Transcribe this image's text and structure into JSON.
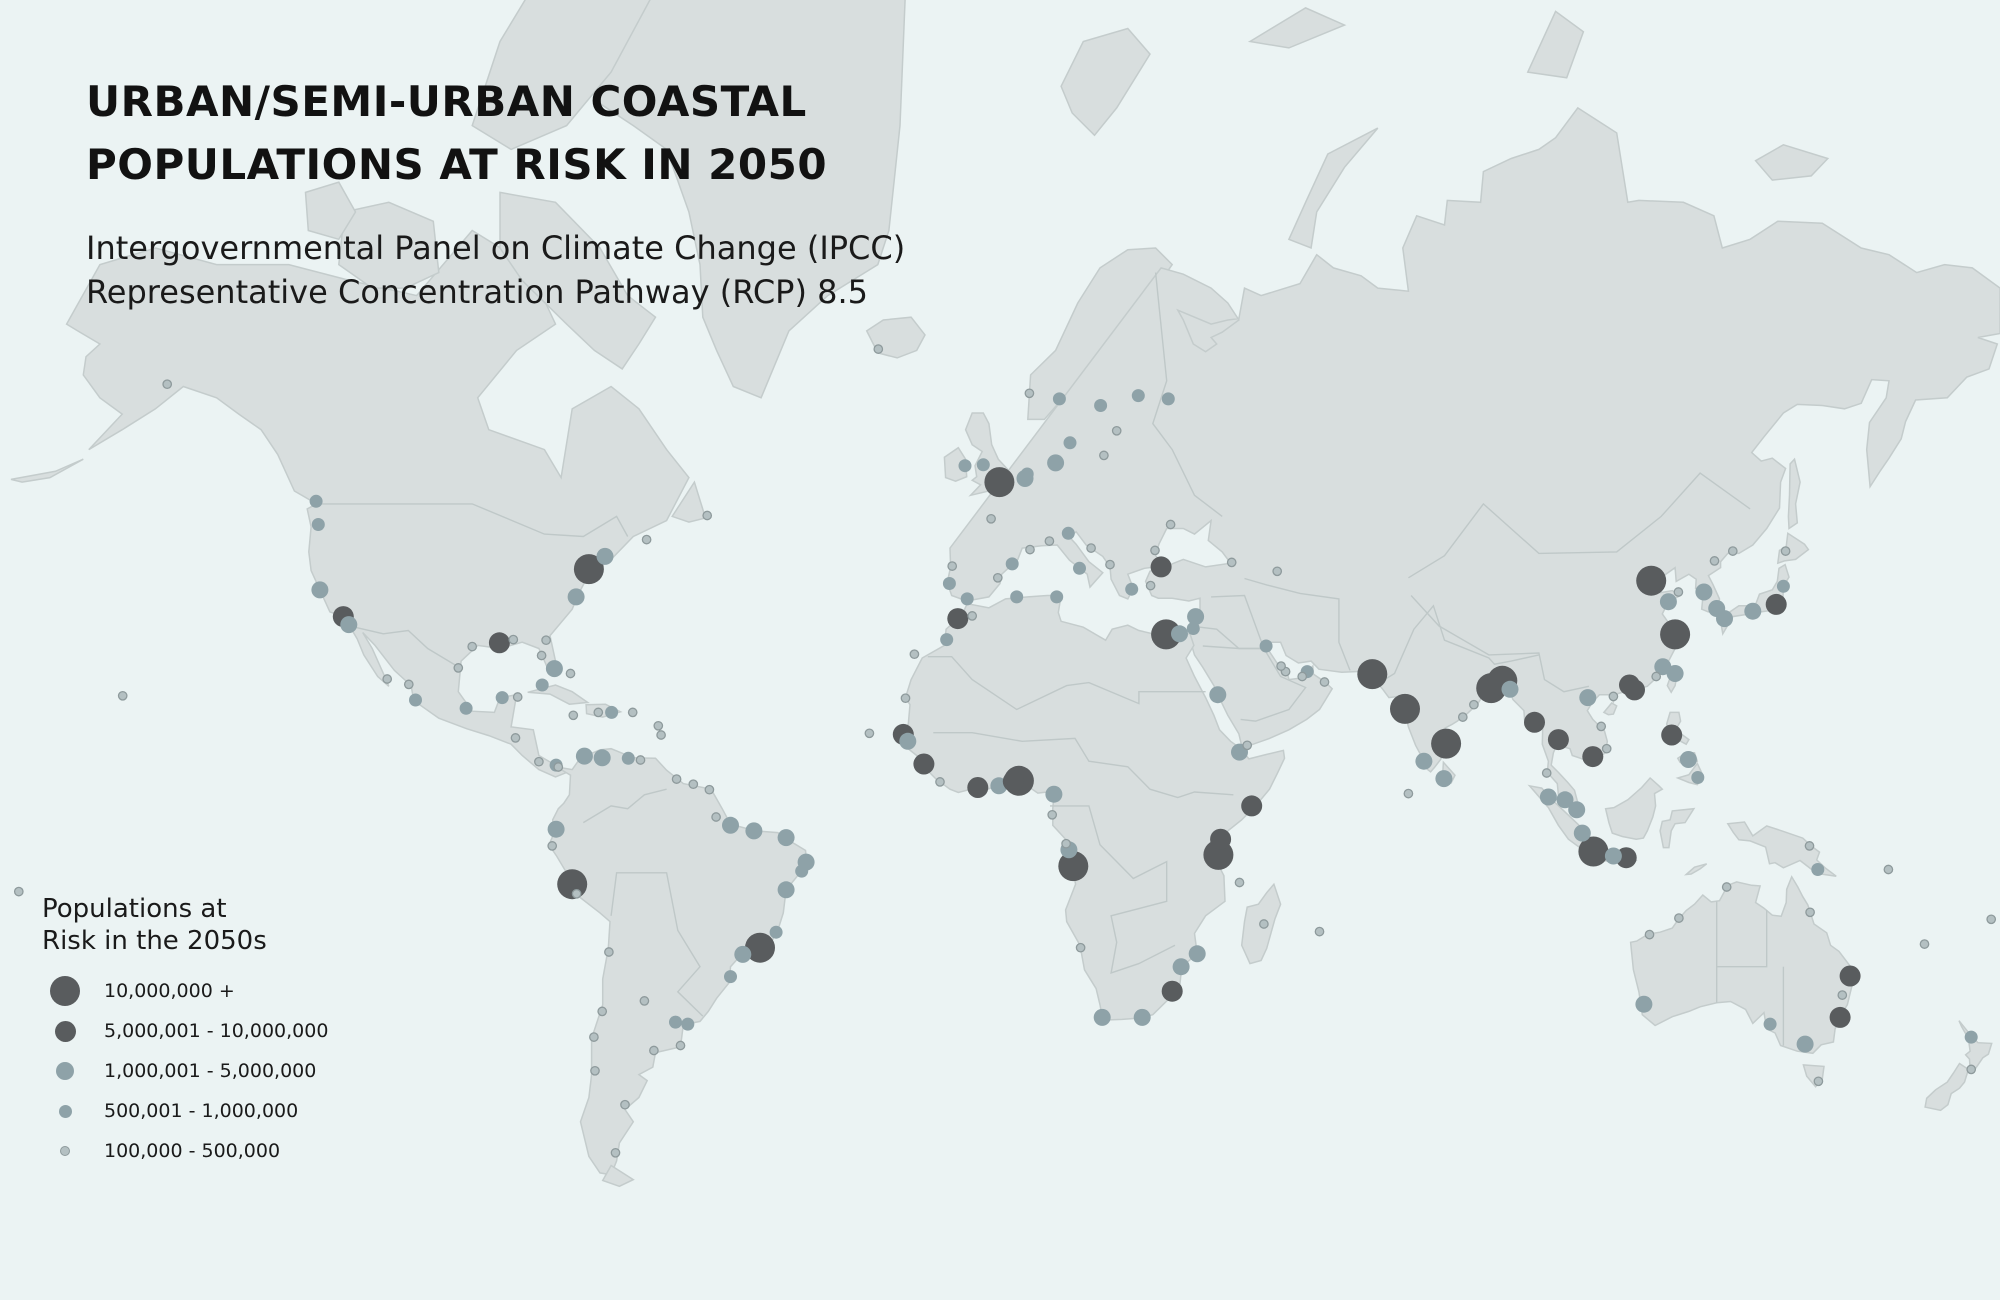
{
  "title": {
    "line1": "URBAN/SEMI-URBAN COASTAL",
    "line2": "POPULATIONS AT RISK IN 2050"
  },
  "subtitle": {
    "line1": "Intergovernmental Panel on Climate Change (IPCC)",
    "line2": "Representative Concentration Pathway (RCP) 8.5"
  },
  "legend": {
    "title_line1": "Populations at",
    "title_line2": "Risk in the 2050s",
    "classes": [
      {
        "label": "10,000,000 +",
        "color": "#595c5e"
      },
      {
        "label": "5,000,001 - 10,000,000",
        "color": "#595c5e"
      },
      {
        "label": "1,000,001 - 5,000,000",
        "color": "#8ea2a8"
      },
      {
        "label": "500,001 - 1,000,000",
        "color": "#8ea2a8"
      },
      {
        "label": "100,000 - 500,000",
        "color": "#b4c0c2"
      }
    ]
  },
  "colors": {
    "ocean": "#ebf3f3",
    "land": "#d8dede",
    "borders": "#c4cccc",
    "high_risk": "#595c5e",
    "medium_risk": "#8ea2a8",
    "low_risk": "#b4c0c2"
  },
  "map_data": {
    "projection": "Mercator (world)",
    "markers": [
      {
        "lon": -74.0,
        "lat": 40.7,
        "cls": 0
      },
      {
        "lon": -118.2,
        "lat": 33.9,
        "cls": 1
      },
      {
        "lon": -90.1,
        "lat": 29.9,
        "cls": 1
      },
      {
        "lon": -122.4,
        "lat": 37.8,
        "cls": 2
      },
      {
        "lon": -117.2,
        "lat": 32.7,
        "cls": 2
      },
      {
        "lon": -80.2,
        "lat": 25.8,
        "cls": 2
      },
      {
        "lon": -71.1,
        "lat": 42.4,
        "cls": 2
      },
      {
        "lon": -76.3,
        "lat": 36.8,
        "cls": 2
      },
      {
        "lon": -122.7,
        "lat": 46.5,
        "cls": 3
      },
      {
        "lon": -87.6,
        "lat": 30.4,
        "cls": 4
      },
      {
        "lon": -95.0,
        "lat": 29.3,
        "cls": 4
      },
      {
        "lon": -81.7,
        "lat": 30.3,
        "cls": 4
      },
      {
        "lon": -82.5,
        "lat": 27.9,
        "cls": 4
      },
      {
        "lon": -82.4,
        "lat": 23.1,
        "cls": 3
      },
      {
        "lon": -77.3,
        "lat": 25.0,
        "cls": 4
      },
      {
        "lon": -105.2,
        "lat": 20.6,
        "cls": 3
      },
      {
        "lon": -96.1,
        "lat": 19.2,
        "cls": 3
      },
      {
        "lon": -89.6,
        "lat": 21.0,
        "cls": 3
      },
      {
        "lon": -86.8,
        "lat": 21.1,
        "cls": 4
      },
      {
        "lon": -79.9,
        "lat": 9.3,
        "cls": 3
      },
      {
        "lon": -76.8,
        "lat": 18.0,
        "cls": 4
      },
      {
        "lon": -69.9,
        "lat": 18.5,
        "cls": 3
      },
      {
        "lon": -66.1,
        "lat": 18.5,
        "cls": 4
      },
      {
        "lon": -61.5,
        "lat": 16.2,
        "cls": 4
      },
      {
        "lon": -61.0,
        "lat": 14.6,
        "cls": 4
      },
      {
        "lon": -74.8,
        "lat": 10.9,
        "cls": 2
      },
      {
        "lon": -71.6,
        "lat": 10.6,
        "cls": 2
      },
      {
        "lon": -66.9,
        "lat": 10.5,
        "cls": 3
      },
      {
        "lon": -64.7,
        "lat": 10.2,
        "cls": 4
      },
      {
        "lon": -79.9,
        "lat": -2.2,
        "cls": 2
      },
      {
        "lon": -77.0,
        "lat": -12.0,
        "cls": 0
      },
      {
        "lon": -43.2,
        "lat": -22.9,
        "cls": 0
      },
      {
        "lon": -38.5,
        "lat": -13.0,
        "cls": 2
      },
      {
        "lon": -34.9,
        "lat": -8.1,
        "cls": 2
      },
      {
        "lon": -38.5,
        "lat": -3.7,
        "cls": 2
      },
      {
        "lon": -48.5,
        "lat": -1.5,
        "cls": 2
      },
      {
        "lon": -44.3,
        "lat": -2.5,
        "cls": 2
      },
      {
        "lon": -46.3,
        "lat": -24.0,
        "cls": 2
      },
      {
        "lon": -48.5,
        "lat": -27.6,
        "cls": 3
      },
      {
        "lon": -58.4,
        "lat": -34.6,
        "cls": 3
      },
      {
        "lon": -56.2,
        "lat": -34.9,
        "cls": 3
      },
      {
        "lon": -71.6,
        "lat": -33.0,
        "cls": 4
      },
      {
        "lon": -70.4,
        "lat": -23.6,
        "cls": 4
      },
      {
        "lon": -40.3,
        "lat": -20.3,
        "cls": 3
      },
      {
        "lon": -35.7,
        "lat": -9.7,
        "cls": 3
      },
      {
        "lon": -0.1,
        "lat": 51.5,
        "cls": 0
      },
      {
        "lon": 4.5,
        "lat": 51.9,
        "cls": 2
      },
      {
        "lon": 4.9,
        "lat": 52.4,
        "cls": 3
      },
      {
        "lon": 10.0,
        "lat": 53.6,
        "cls": 2
      },
      {
        "lon": 12.6,
        "lat": 55.7,
        "cls": 3
      },
      {
        "lon": 18.1,
        "lat": 59.3,
        "cls": 3
      },
      {
        "lon": 24.9,
        "lat": 60.2,
        "cls": 3
      },
      {
        "lon": 30.3,
        "lat": 59.9,
        "cls": 3
      },
      {
        "lon": 10.7,
        "lat": 59.9,
        "cls": 3
      },
      {
        "lon": -6.3,
        "lat": 53.3,
        "cls": 3
      },
      {
        "lon": -3.0,
        "lat": 53.4,
        "cls": 3
      },
      {
        "lon": -9.1,
        "lat": 38.7,
        "cls": 3
      },
      {
        "lon": -5.9,
        "lat": 36.5,
        "cls": 3
      },
      {
        "lon": 2.2,
        "lat": 41.4,
        "cls": 3
      },
      {
        "lon": 12.3,
        "lat": 45.4,
        "cls": 3
      },
      {
        "lon": 14.3,
        "lat": 40.8,
        "cls": 3
      },
      {
        "lon": 23.7,
        "lat": 37.9,
        "cls": 3
      },
      {
        "lon": 29.0,
        "lat": 41.0,
        "cls": 1
      },
      {
        "lon": 29.9,
        "lat": 31.2,
        "cls": 0
      },
      {
        "lon": 32.3,
        "lat": 31.3,
        "cls": 2
      },
      {
        "lon": 35.2,
        "lat": 33.9,
        "cls": 2
      },
      {
        "lon": 34.8,
        "lat": 32.1,
        "cls": 3
      },
      {
        "lon": -7.6,
        "lat": 33.6,
        "cls": 1
      },
      {
        "lon": -5.0,
        "lat": 34.0,
        "cls": 4
      },
      {
        "lon": -9.6,
        "lat": 30.4,
        "cls": 3
      },
      {
        "lon": 3.0,
        "lat": 36.8,
        "cls": 3
      },
      {
        "lon": 10.2,
        "lat": 36.8,
        "cls": 3
      },
      {
        "lon": -17.4,
        "lat": 14.7,
        "cls": 1
      },
      {
        "lon": -16.6,
        "lat": 13.5,
        "cls": 2
      },
      {
        "lon": -13.7,
        "lat": 9.5,
        "cls": 1
      },
      {
        "lon": -4.0,
        "lat": 5.3,
        "cls": 1
      },
      {
        "lon": -0.2,
        "lat": 5.6,
        "cls": 2
      },
      {
        "lon": 3.4,
        "lat": 6.5,
        "cls": 0
      },
      {
        "lon": 2.4,
        "lat": 6.4,
        "cls": 1
      },
      {
        "lon": 9.7,
        "lat": 4.1,
        "cls": 2
      },
      {
        "lon": 13.2,
        "lat": -8.8,
        "cls": 0
      },
      {
        "lon": 12.4,
        "lat": -5.9,
        "cls": 2
      },
      {
        "lon": 39.3,
        "lat": -6.8,
        "cls": 0
      },
      {
        "lon": 39.7,
        "lat": -4.0,
        "cls": 1
      },
      {
        "lon": 45.3,
        "lat": 2.0,
        "cls": 1
      },
      {
        "lon": 43.1,
        "lat": 11.6,
        "cls": 2
      },
      {
        "lon": 39.2,
        "lat": 21.5,
        "cls": 2
      },
      {
        "lon": 35.5,
        "lat": -23.9,
        "cls": 2
      },
      {
        "lon": 32.6,
        "lat": -26.0,
        "cls": 2
      },
      {
        "lon": 31.0,
        "lat": -29.9,
        "cls": 1
      },
      {
        "lon": 25.6,
        "lat": -33.9,
        "cls": 2
      },
      {
        "lon": 18.4,
        "lat": -33.9,
        "cls": 2
      },
      {
        "lon": 47.5,
        "lat": -18.9,
        "cls": 4
      },
      {
        "lon": 67.0,
        "lat": 24.9,
        "cls": 0
      },
      {
        "lon": 72.9,
        "lat": 19.1,
        "cls": 0
      },
      {
        "lon": 76.3,
        "lat": 10.0,
        "cls": 2
      },
      {
        "lon": 80.3,
        "lat": 13.1,
        "cls": 0
      },
      {
        "lon": 79.9,
        "lat": 6.9,
        "cls": 2
      },
      {
        "lon": 88.4,
        "lat": 22.6,
        "cls": 0
      },
      {
        "lon": 90.4,
        "lat": 23.8,
        "cls": 0
      },
      {
        "lon": 91.8,
        "lat": 22.4,
        "cls": 2
      },
      {
        "lon": 96.2,
        "lat": 16.8,
        "cls": 1
      },
      {
        "lon": 100.5,
        "lat": 13.8,
        "cls": 1
      },
      {
        "lon": 106.7,
        "lat": 10.8,
        "cls": 1
      },
      {
        "lon": 105.8,
        "lat": 21.0,
        "cls": 2
      },
      {
        "lon": 113.3,
        "lat": 23.1,
        "cls": 1
      },
      {
        "lon": 114.2,
        "lat": 22.3,
        "cls": 1
      },
      {
        "lon": 121.5,
        "lat": 31.2,
        "cls": 0
      },
      {
        "lon": 117.2,
        "lat": 39.1,
        "cls": 0
      },
      {
        "lon": 120.3,
        "lat": 36.1,
        "cls": 2
      },
      {
        "lon": 119.3,
        "lat": 26.1,
        "cls": 2
      },
      {
        "lon": 121.5,
        "lat": 25.0,
        "cls": 2
      },
      {
        "lon": 120.9,
        "lat": 14.6,
        "cls": 1
      },
      {
        "lon": 106.8,
        "lat": -6.2,
        "cls": 0
      },
      {
        "lon": 112.7,
        "lat": -7.3,
        "cls": 1
      },
      {
        "lon": 110.4,
        "lat": -7.0,
        "cls": 2
      },
      {
        "lon": 103.8,
        "lat": 1.3,
        "cls": 2
      },
      {
        "lon": 98.7,
        "lat": 3.6,
        "cls": 2
      },
      {
        "lon": 101.7,
        "lat": 3.1,
        "cls": 2
      },
      {
        "lon": 104.8,
        "lat": -2.9,
        "cls": 2
      },
      {
        "lon": 135.5,
        "lat": 34.7,
        "cls": 2
      },
      {
        "lon": 139.7,
        "lat": 35.7,
        "cls": 1
      },
      {
        "lon": 129.0,
        "lat": 35.1,
        "cls": 2
      },
      {
        "lon": 126.7,
        "lat": 37.5,
        "cls": 2
      },
      {
        "lon": 130.4,
        "lat": 33.6,
        "cls": 2
      },
      {
        "lon": 141.0,
        "lat": 38.3,
        "cls": 3
      },
      {
        "lon": 125.6,
        "lat": 7.1,
        "cls": 3
      },
      {
        "lon": 123.9,
        "lat": 10.3,
        "cls": 2
      },
      {
        "lon": 147.2,
        "lat": -9.4,
        "cls": 3
      },
      {
        "lon": 151.2,
        "lat": -33.9,
        "cls": 1
      },
      {
        "lon": 153.0,
        "lat": -27.5,
        "cls": 1
      },
      {
        "lon": 144.9,
        "lat": -37.8,
        "cls": 2
      },
      {
        "lon": 138.6,
        "lat": -34.9,
        "cls": 3
      },
      {
        "lon": 115.9,
        "lat": -31.9,
        "cls": 2
      },
      {
        "lon": 174.8,
        "lat": -36.8,
        "cls": 3
      },
      {
        "lon": 174.8,
        "lat": -41.3,
        "cls": 4
      },
      {
        "lon": 145.8,
        "lat": -16.9,
        "cls": 4
      },
      {
        "lon": -157.9,
        "lat": 21.3,
        "cls": 4
      },
      {
        "lon": 18.7,
        "lat": 54.4,
        "cls": 4
      },
      {
        "lon": 21.0,
        "lat": 56.9,
        "cls": 4
      },
      {
        "lon": 5.3,
        "lat": 60.4,
        "cls": 4
      },
      {
        "lon": -1.6,
        "lat": 47.2,
        "cls": 4
      },
      {
        "lon": -8.6,
        "lat": 41.1,
        "cls": 4
      },
      {
        "lon": -0.4,
        "lat": 39.5,
        "cls": 4
      },
      {
        "lon": 5.4,
        "lat": 43.3,
        "cls": 4
      },
      {
        "lon": 8.9,
        "lat": 44.4,
        "cls": 4
      },
      {
        "lon": 16.4,
        "lat": 43.5,
        "cls": 4
      },
      {
        "lon": 19.8,
        "lat": 41.3,
        "cls": 4
      },
      {
        "lon": 27.1,
        "lat": 38.4,
        "cls": 4
      },
      {
        "lon": 27.9,
        "lat": 43.2,
        "cls": 4
      },
      {
        "lon": 30.7,
        "lat": 46.5,
        "cls": 4
      },
      {
        "lon": 41.7,
        "lat": 41.6,
        "cls": 4
      },
      {
        "lon": 49.9,
        "lat": 40.4,
        "cls": 4
      },
      {
        "lon": 51.4,
        "lat": 25.3,
        "cls": 4
      },
      {
        "lon": 55.3,
        "lat": 25.3,
        "cls": 3
      },
      {
        "lon": 58.4,
        "lat": 23.6,
        "cls": 4
      },
      {
        "lon": 54.4,
        "lat": 24.5,
        "cls": 4
      },
      {
        "lon": 50.6,
        "lat": 26.2,
        "cls": 4
      },
      {
        "lon": 47.9,
        "lat": 29.4,
        "cls": 3
      },
      {
        "lon": 44.5,
        "lat": 12.8,
        "cls": 4
      },
      {
        "lon": 43.1,
        "lat": -11.7,
        "cls": 4
      },
      {
        "lon": 57.5,
        "lat": -20.2,
        "cls": 4
      },
      {
        "lon": 73.5,
        "lat": 4.2,
        "cls": 4
      },
      {
        "lon": 85.3,
        "lat": 19.8,
        "cls": 4
      },
      {
        "lon": 83.3,
        "lat": 17.7,
        "cls": 4
      },
      {
        "lon": 98.4,
        "lat": 7.9,
        "cls": 4
      },
      {
        "lon": 109.2,
        "lat": 12.2,
        "cls": 4
      },
      {
        "lon": 108.2,
        "lat": 16.1,
        "cls": 4
      },
      {
        "lon": 110.4,
        "lat": 21.2,
        "cls": 4
      },
      {
        "lon": 118.1,
        "lat": 24.5,
        "cls": 4
      },
      {
        "lon": 122.1,
        "lat": 37.5,
        "cls": 4
      },
      {
        "lon": 128.6,
        "lat": 41.8,
        "cls": 4
      },
      {
        "lon": 131.9,
        "lat": 43.1,
        "cls": 4
      },
      {
        "lon": 141.4,
        "lat": 43.1,
        "cls": 4
      },
      {
        "lon": -52.7,
        "lat": 47.6,
        "cls": 4
      },
      {
        "lon": -63.6,
        "lat": 44.6,
        "cls": 4
      },
      {
        "lon": -123.1,
        "lat": 49.3,
        "cls": 3
      },
      {
        "lon": -149.9,
        "lat": 61.2,
        "cls": 4
      },
      {
        "lon": -21.9,
        "lat": 64.1,
        "cls": 4
      },
      {
        "lon": -15.4,
        "lat": 28.1,
        "cls": 4
      },
      {
        "lon": -23.5,
        "lat": 14.9,
        "cls": 4
      },
      {
        "lon": -17.0,
        "lat": 20.9,
        "cls": 4
      },
      {
        "lon": -10.8,
        "lat": 6.3,
        "cls": 4
      },
      {
        "lon": 9.4,
        "lat": 0.4,
        "cls": 4
      },
      {
        "lon": 11.9,
        "lat": -4.8,
        "cls": 4
      },
      {
        "lon": 14.5,
        "lat": -22.9,
        "cls": 4
      },
      {
        "lon": -58.2,
        "lat": 6.8,
        "cls": 4
      },
      {
        "lon": -55.2,
        "lat": 5.9,
        "cls": 4
      },
      {
        "lon": -52.3,
        "lat": 4.9,
        "cls": 4
      },
      {
        "lon": -51.1,
        "lat": 0.0,
        "cls": 4
      },
      {
        "lon": -80.6,
        "lat": -5.2,
        "cls": 4
      },
      {
        "lon": -76.2,
        "lat": -13.7,
        "cls": 4
      },
      {
        "lon": -73.1,
        "lat": -36.8,
        "cls": 4
      },
      {
        "lon": -72.9,
        "lat": -41.5,
        "cls": 4
      },
      {
        "lon": -67.5,
        "lat": -45.9,
        "cls": 4
      },
      {
        "lon": -69.2,
        "lat": -51.6,
        "cls": 4
      },
      {
        "lon": -62.3,
        "lat": -38.7,
        "cls": 4
      },
      {
        "lon": -57.5,
        "lat": -38.0,
        "cls": 4
      },
      {
        "lon": -79.5,
        "lat": 8.97,
        "cls": 4
      },
      {
        "lon": -87.2,
        "lat": 14.1,
        "cls": 4
      },
      {
        "lon": -83.0,
        "lat": 9.9,
        "cls": 4
      },
      {
        "lon": -72.3,
        "lat": 18.5,
        "cls": 4
      },
      {
        "lon": -64.0,
        "lat": -31.4,
        "cls": 4
      },
      {
        "lon": -97.5,
        "lat": 25.9,
        "cls": 4
      },
      {
        "lon": -106.4,
        "lat": 23.2,
        "cls": 4
      },
      {
        "lon": -110.3,
        "lat": 24.1,
        "cls": 4
      },
      {
        "lon": 145.7,
        "lat": -5.2,
        "cls": 4
      },
      {
        "lon": 159.9,
        "lat": -9.4,
        "cls": 4
      },
      {
        "lon": 166.4,
        "lat": -22.3,
        "cls": 4
      },
      {
        "lon": 178.4,
        "lat": -18.1,
        "cls": 4
      },
      {
        "lon": 151.6,
        "lat": -30.5,
        "cls": 4
      },
      {
        "lon": 147.3,
        "lat": -42.9,
        "cls": 4
      },
      {
        "lon": 130.8,
        "lat": -12.5,
        "cls": 4
      },
      {
        "lon": 122.2,
        "lat": -17.9,
        "cls": 4
      },
      {
        "lon": 116.9,
        "lat": -20.7,
        "cls": 4
      },
      {
        "lon": -176.6,
        "lat": -13.3,
        "cls": 4
      }
    ]
  }
}
